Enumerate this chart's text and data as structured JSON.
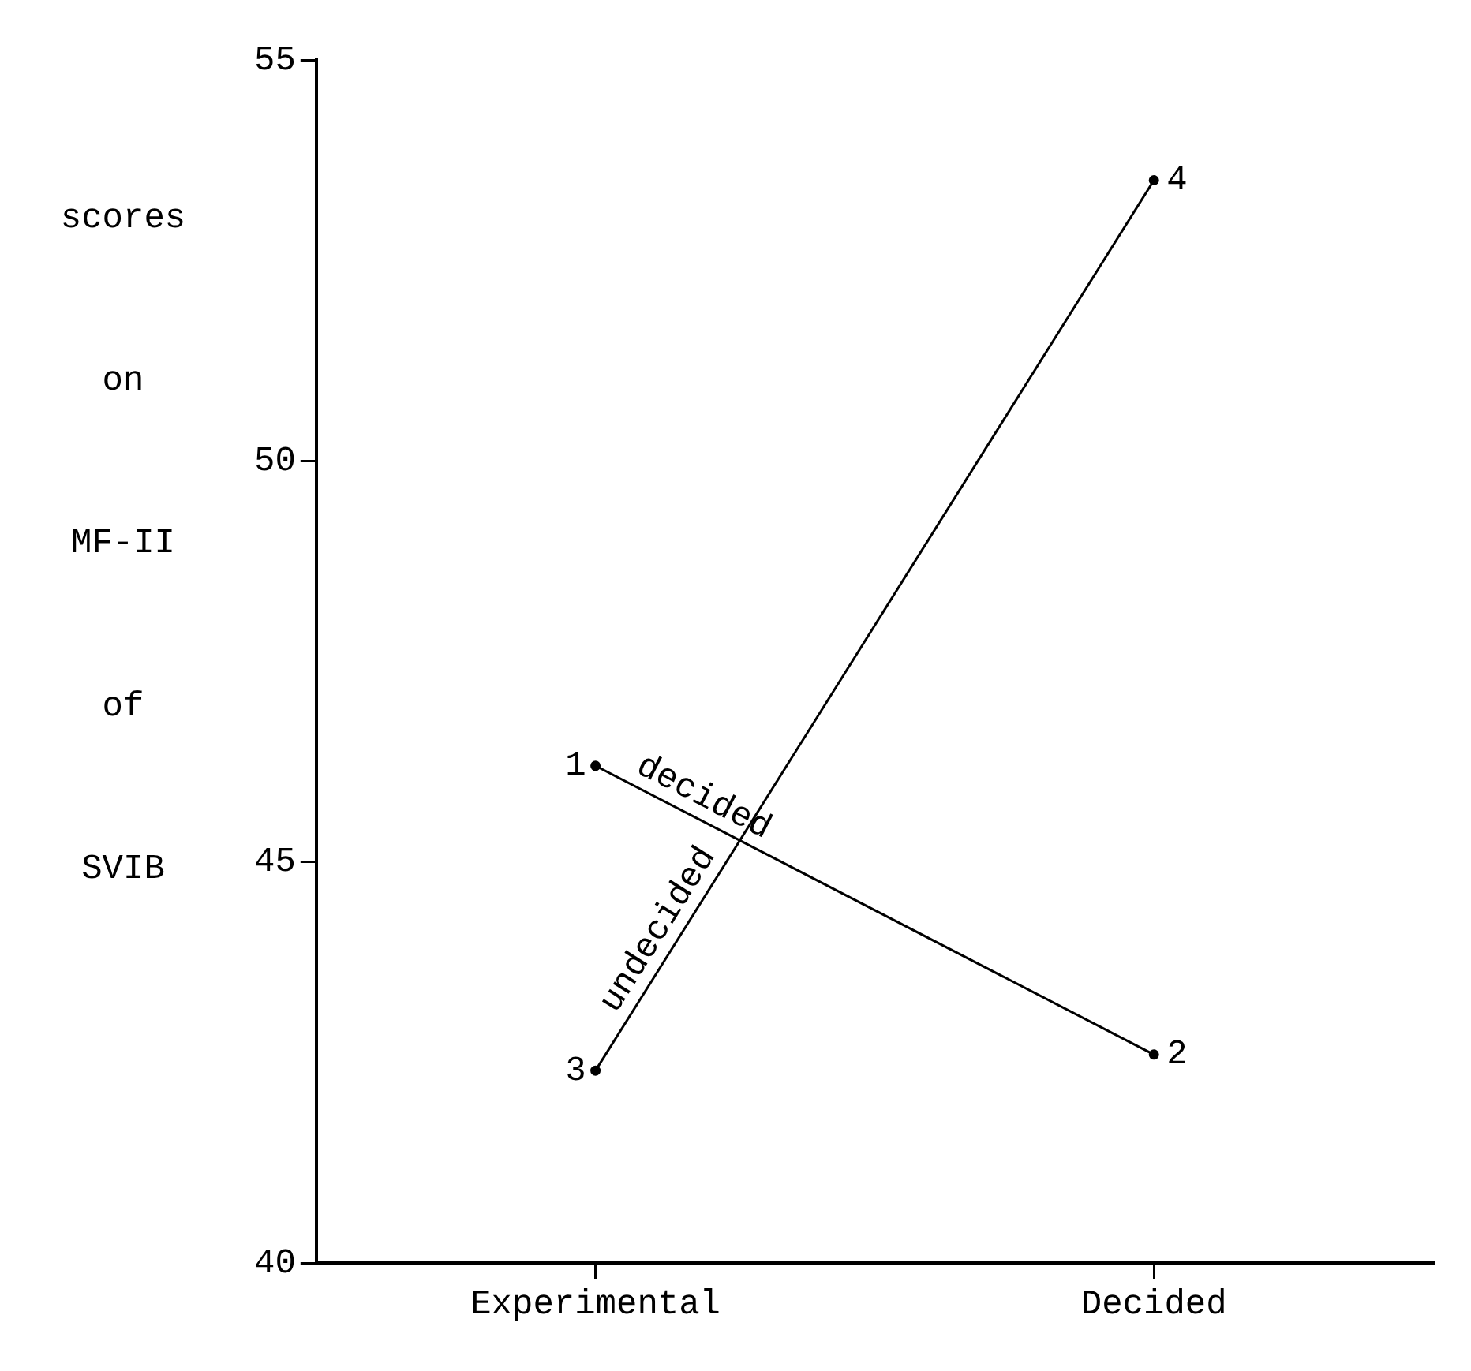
{
  "chart_data": {
    "type": "line",
    "ylabel": "scores on MF-II of SVIB",
    "categories": [
      "Experimental",
      "Decided"
    ],
    "series": [
      {
        "name": "decided",
        "color": "#000000",
        "values": [
          46.2,
          42.6
        ]
      },
      {
        "name": "undecided",
        "color": "#000000",
        "values": [
          42.4,
          53.5
        ]
      }
    ],
    "ylim": [
      40,
      55
    ],
    "yticks": [
      40,
      45,
      50,
      55
    ],
    "grid": false,
    "legend": false,
    "marker": "circle",
    "line_style": "solid",
    "annotations": [
      {
        "text": "1",
        "x": "Experimental",
        "y": 46.2
      },
      {
        "text": "2",
        "x": "Decided",
        "y": 42.6
      },
      {
        "text": "3",
        "x": "Experimental",
        "y": 42.4
      },
      {
        "text": "4",
        "x": "Decided",
        "y": 53.5
      }
    ]
  }
}
